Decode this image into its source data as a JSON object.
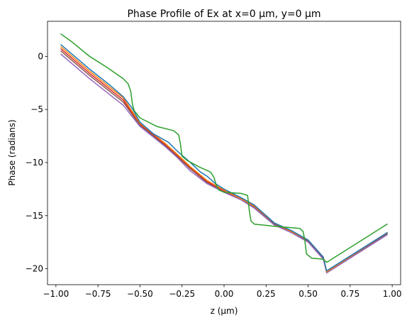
{
  "chart_data": {
    "type": "line",
    "title": "Phase Profile of Ex at x=0 μm, y=0 μm",
    "xlabel": "z (μm)",
    "ylabel": "Phase (radians)",
    "xlim": [
      -1.05,
      1.05
    ],
    "ylim": [
      -21.5,
      3.3
    ],
    "xticks": [
      -1.0,
      -0.75,
      -0.5,
      -0.25,
      0.0,
      0.25,
      0.5,
      0.75,
      1.0
    ],
    "xtick_labels": [
      "−1.00",
      "−0.75",
      "−0.50",
      "−0.25",
      "0.00",
      "0.25",
      "0.50",
      "0.75",
      "1.00"
    ],
    "yticks": [
      0,
      -5,
      -10,
      -15,
      -20
    ],
    "ytick_labels": [
      "0",
      "−5",
      "−10",
      "−15",
      "−20"
    ],
    "grid": false,
    "legend": "none",
    "series": [
      {
        "color": "#d62728",
        "points": [
          [
            -0.97,
            0.7
          ],
          [
            -0.8,
            -1.6
          ],
          [
            -0.6,
            -4.1
          ],
          [
            -0.5,
            -6.4
          ],
          [
            -0.35,
            -8.3
          ],
          [
            -0.28,
            -9.3
          ],
          [
            -0.2,
            -10.5
          ],
          [
            -0.1,
            -11.8
          ],
          [
            0.0,
            -12.7
          ],
          [
            0.1,
            -13.4
          ],
          [
            0.18,
            -14.1
          ],
          [
            0.3,
            -15.8
          ],
          [
            0.4,
            -16.5
          ],
          [
            0.5,
            -17.4
          ],
          [
            0.59,
            -18.9
          ],
          [
            0.61,
            -20.3
          ],
          [
            0.97,
            -16.7
          ]
        ]
      },
      {
        "color": "#8c564b",
        "points": [
          [
            -0.97,
            0.5
          ],
          [
            -0.8,
            -1.8
          ],
          [
            -0.6,
            -4.3
          ],
          [
            -0.5,
            -6.5
          ],
          [
            -0.35,
            -8.4
          ],
          [
            -0.28,
            -9.4
          ],
          [
            -0.2,
            -10.6
          ],
          [
            -0.1,
            -11.9
          ],
          [
            0.0,
            -12.8
          ],
          [
            0.1,
            -13.5
          ],
          [
            0.18,
            -14.2
          ],
          [
            0.3,
            -15.8
          ],
          [
            0.4,
            -16.6
          ],
          [
            0.5,
            -17.4
          ],
          [
            0.59,
            -19.0
          ],
          [
            0.61,
            -20.3
          ],
          [
            0.97,
            -16.7
          ]
        ]
      },
      {
        "color": "#9467bd",
        "points": [
          [
            -0.97,
            0.2
          ],
          [
            -0.8,
            -2.1
          ],
          [
            -0.6,
            -4.6
          ],
          [
            -0.5,
            -6.6
          ],
          [
            -0.35,
            -8.5
          ],
          [
            -0.28,
            -9.5
          ],
          [
            -0.2,
            -10.8
          ],
          [
            -0.1,
            -12.0
          ],
          [
            0.0,
            -12.8
          ],
          [
            0.1,
            -13.5
          ],
          [
            0.18,
            -14.3
          ],
          [
            0.3,
            -15.9
          ],
          [
            0.4,
            -16.6
          ],
          [
            0.5,
            -17.5
          ],
          [
            0.59,
            -19.1
          ],
          [
            0.61,
            -20.4
          ],
          [
            0.97,
            -16.8
          ]
        ]
      },
      {
        "color": "#ff7f0e",
        "points": [
          [
            -0.97,
            0.9
          ],
          [
            -0.8,
            -1.4
          ],
          [
            -0.6,
            -3.9
          ],
          [
            -0.5,
            -6.3
          ],
          [
            -0.35,
            -8.2
          ],
          [
            -0.28,
            -9.2
          ],
          [
            -0.2,
            -10.4
          ],
          [
            -0.1,
            -11.7
          ],
          [
            0.0,
            -12.6
          ],
          [
            0.1,
            -13.4
          ],
          [
            0.18,
            -14.1
          ],
          [
            0.3,
            -15.7
          ],
          [
            0.4,
            -16.5
          ],
          [
            0.5,
            -17.3
          ],
          [
            0.59,
            -18.9
          ],
          [
            0.61,
            -20.3
          ],
          [
            0.97,
            -16.6
          ]
        ]
      },
      {
        "color": "#1f77b4",
        "points": [
          [
            -0.97,
            1.1
          ],
          [
            -0.8,
            -1.2
          ],
          [
            -0.68,
            -2.7
          ],
          [
            -0.6,
            -3.8
          ],
          [
            -0.55,
            -4.8
          ],
          [
            -0.5,
            -6.2
          ],
          [
            -0.42,
            -7.3
          ],
          [
            -0.33,
            -8.1
          ],
          [
            -0.28,
            -8.9
          ],
          [
            -0.2,
            -10.0
          ],
          [
            -0.14,
            -10.9
          ],
          [
            -0.1,
            -11.3
          ],
          [
            -0.05,
            -12.0
          ],
          [
            0.0,
            -12.5
          ],
          [
            0.1,
            -13.3
          ],
          [
            0.18,
            -14.0
          ],
          [
            0.3,
            -15.7
          ],
          [
            0.4,
            -16.4
          ],
          [
            0.5,
            -17.3
          ],
          [
            0.59,
            -18.9
          ],
          [
            0.61,
            -20.2
          ],
          [
            0.97,
            -16.6
          ]
        ]
      },
      {
        "color": "#2ca02c",
        "points": [
          [
            -0.97,
            2.1
          ],
          [
            -0.9,
            1.3
          ],
          [
            -0.8,
            0.0
          ],
          [
            -0.7,
            -1.0
          ],
          [
            -0.6,
            -2.1
          ],
          [
            -0.57,
            -2.6
          ],
          [
            -0.555,
            -3.3
          ],
          [
            -0.545,
            -4.5
          ],
          [
            -0.535,
            -5.1
          ],
          [
            -0.5,
            -5.8
          ],
          [
            -0.4,
            -6.6
          ],
          [
            -0.3,
            -7.0
          ],
          [
            -0.27,
            -7.4
          ],
          [
            -0.26,
            -8.2
          ],
          [
            -0.25,
            -9.4
          ],
          [
            -0.22,
            -9.8
          ],
          [
            -0.15,
            -10.4
          ],
          [
            -0.08,
            -10.9
          ],
          [
            -0.06,
            -11.4
          ],
          [
            -0.045,
            -12.2
          ],
          [
            -0.03,
            -12.6
          ],
          [
            0.0,
            -12.8
          ],
          [
            0.1,
            -12.9
          ],
          [
            0.14,
            -13.1
          ],
          [
            0.15,
            -14.5
          ],
          [
            0.16,
            -15.5
          ],
          [
            0.18,
            -15.8
          ],
          [
            0.3,
            -16.0
          ],
          [
            0.45,
            -16.2
          ],
          [
            0.47,
            -16.5
          ],
          [
            0.48,
            -17.3
          ],
          [
            0.49,
            -18.6
          ],
          [
            0.52,
            -19.0
          ],
          [
            0.59,
            -19.1
          ],
          [
            0.61,
            -19.4
          ],
          [
            0.97,
            -15.8
          ]
        ]
      }
    ]
  }
}
